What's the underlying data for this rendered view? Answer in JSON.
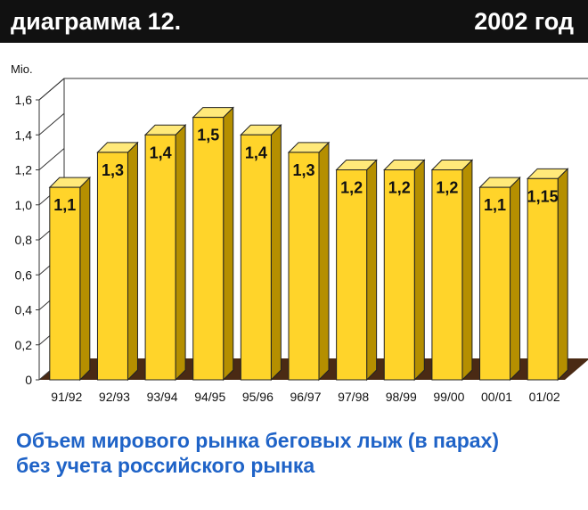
{
  "header": {
    "left": "диаграмма 12.",
    "right": "2002 год"
  },
  "caption": {
    "line1": "Объем мирового рынка беговых лыж (в парах)",
    "line2": "без учета российского рынка"
  },
  "colors": {
    "header_bg": "#111111",
    "bar_front": "#ffd42a",
    "bar_top": "#ffe97a",
    "bar_side": "#b58f00",
    "floor": "#4a2a14",
    "caption": "#1f63c7"
  },
  "chart_data": {
    "type": "bar",
    "ylabel": "Mio.",
    "ylim": [
      0,
      1.6
    ],
    "yticks": [
      "0",
      "0,2",
      "0,4",
      "0,6",
      "0,8",
      "1,0",
      "1,2",
      "1,4",
      "1,6"
    ],
    "grid": false,
    "legend": "none",
    "categories": [
      "91/92",
      "92/93",
      "93/94",
      "94/95",
      "95/96",
      "96/97",
      "97/98",
      "98/99",
      "99/00",
      "00/01",
      "01/02"
    ],
    "values": [
      1.1,
      1.3,
      1.4,
      1.5,
      1.4,
      1.3,
      1.2,
      1.2,
      1.2,
      1.1,
      1.15
    ],
    "value_labels": [
      "1,1",
      "1,3",
      "1,4",
      "1,5",
      "1,4",
      "1,3",
      "1,2",
      "1,2",
      "1,2",
      "1,1",
      "1,15"
    ]
  }
}
